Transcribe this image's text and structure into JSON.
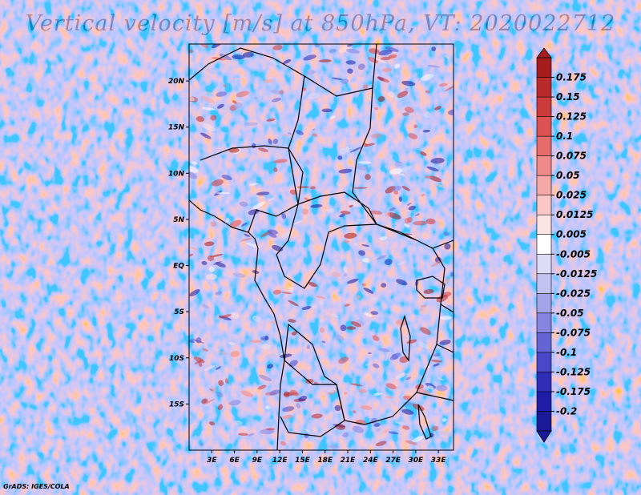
{
  "title": "Vertical velocity [m/s] at 850hPa, VT: 2020022712",
  "credit": "GrADS: IGES/COLA",
  "map": {
    "variable": "Vertical velocity",
    "units": "m/s",
    "level": "850hPa",
    "valid_time": "2020022712",
    "lon_range": [
      0,
      35
    ],
    "lat_range": [
      -20,
      24
    ],
    "lon_ticks": [
      "3E",
      "6E",
      "9E",
      "12E",
      "15E",
      "18E",
      "21E",
      "24E",
      "27E",
      "30E",
      "33E"
    ],
    "lon_tick_values": [
      3,
      6,
      9,
      12,
      15,
      18,
      21,
      24,
      27,
      30,
      33
    ],
    "lat_ticks": [
      "20N",
      "15N",
      "10N",
      "5N",
      "EQ",
      "5S",
      "10S",
      "15S"
    ],
    "lat_tick_values": [
      20,
      15,
      10,
      5,
      0,
      -5,
      -10,
      -15
    ]
  },
  "colorbar": {
    "labels": [
      "0.175",
      "0.15",
      "0.125",
      "0.1",
      "0.075",
      "0.05",
      "0.025",
      "0.0125",
      "0.005",
      "-0.005",
      "-0.0125",
      "-0.025",
      "-0.05",
      "-0.075",
      "-0.1",
      "-0.125",
      "-0.175",
      "-0.2"
    ],
    "colors": [
      "#a51c1c",
      "#b92a2a",
      "#cc3b3b",
      "#dc5151",
      "#e66c6c",
      "#ef8a8a",
      "#f5a8a8",
      "#fac6c6",
      "#fde4e4",
      "#ffffff",
      "#dcdcf6",
      "#c2c2f0",
      "#a3a3e8",
      "#8585e0",
      "#6464d4",
      "#4848c8",
      "#2d2db8",
      "#1e1ea8",
      "#1a1a98"
    ]
  },
  "colors": {
    "frame": "#000000",
    "positive": "#d94a4a",
    "negative": "#6a6ad8"
  }
}
